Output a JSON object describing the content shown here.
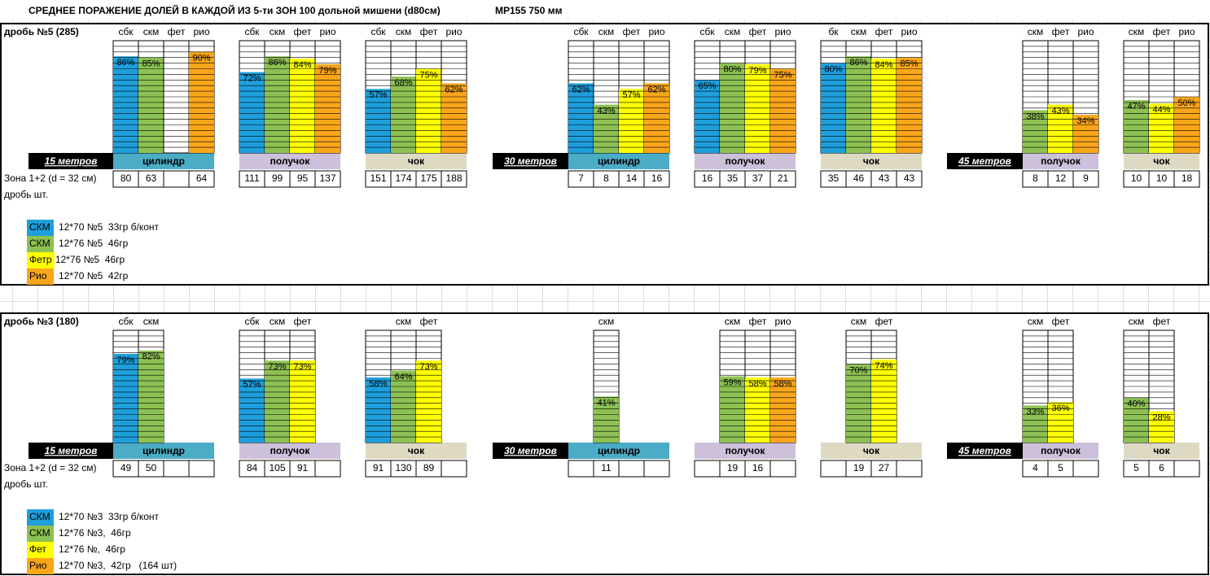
{
  "header": {
    "title": "СРЕДНЕЕ ПОРАЖЕНИЕ ДОЛЕЙ В КАЖДОЙ ИЗ 5-ти ЗОН 100 дольной мишени (d80см)",
    "gun": "МР155 750 мм"
  },
  "sections": [
    {
      "title": "дробь №5 (285)",
      "zone_label": "Зона 1+2 (d = 32 см)",
      "count_label": "дробь шт.",
      "ranges": [
        {
          "distance": "15 метров",
          "groups": [
            {
              "choke": "цилиндр",
              "color": "#4bacc6",
              "columns": [
                {
                  "header": "сбк",
                  "value": 86,
                  "label": "86%",
                  "count": 80,
                  "color": "#1e9fdc"
                },
                {
                  "header": "скм",
                  "value": 85,
                  "label": "85%",
                  "count": 63,
                  "color": "#8dc153"
                },
                {
                  "header": "фет",
                  "value": null,
                  "count": null
                },
                {
                  "header": "рио",
                  "value": 90,
                  "label": "90%",
                  "count": 64,
                  "color": "#faa61a"
                }
              ]
            },
            {
              "choke": "получок",
              "color": "#ccc0da",
              "columns": [
                {
                  "header": "сбк",
                  "value": 72,
                  "label": "72%",
                  "count": 111,
                  "color": "#1e9fdc"
                },
                {
                  "header": "скм",
                  "value": 86,
                  "label": "86%",
                  "count": 99,
                  "color": "#8dc153"
                },
                {
                  "header": "фет",
                  "value": 84,
                  "label": "84%",
                  "count": 95,
                  "color": "#ffff00"
                },
                {
                  "header": "рио",
                  "value": 79,
                  "label": "79%",
                  "count": 137,
                  "color": "#faa61a"
                }
              ]
            },
            {
              "choke": "чок",
              "color": "#ddd9c3",
              "columns": [
                {
                  "header": "сбк",
                  "value": 57,
                  "label": "57%",
                  "count": 151,
                  "color": "#1e9fdc"
                },
                {
                  "header": "скм",
                  "value": 68,
                  "label": "68%",
                  "count": 174,
                  "color": "#8dc153"
                },
                {
                  "header": "фет",
                  "value": 75,
                  "label": "75%",
                  "count": 175,
                  "color": "#ffff00"
                },
                {
                  "header": "рио",
                  "value": 62,
                  "label": "62%",
                  "count": 188,
                  "color": "#faa61a"
                }
              ]
            }
          ]
        },
        {
          "distance": "30 метров",
          "groups": [
            {
              "choke": "цилиндр",
              "color": "#4bacc6",
              "columns": [
                {
                  "header": "сбк",
                  "value": 62,
                  "label": "62%",
                  "count": 7,
                  "color": "#1e9fdc"
                },
                {
                  "header": "скм",
                  "value": 43,
                  "label": "43%",
                  "count": 8,
                  "color": "#8dc153"
                },
                {
                  "header": "фет",
                  "value": 57,
                  "label": "57%",
                  "count": 14,
                  "color": "#ffff00"
                },
                {
                  "header": "рио",
                  "value": 62,
                  "label": "62%",
                  "count": 16,
                  "color": "#faa61a"
                }
              ]
            },
            {
              "choke": "получок",
              "color": "#ccc0da",
              "columns": [
                {
                  "header": "сбк",
                  "value": 65,
                  "label": "65%",
                  "count": 16,
                  "color": "#1e9fdc"
                },
                {
                  "header": "скм",
                  "value": 80,
                  "label": "80%",
                  "count": 35,
                  "color": "#8dc153"
                },
                {
                  "header": "фет",
                  "value": 79,
                  "label": "79%",
                  "count": 37,
                  "color": "#ffff00"
                },
                {
                  "header": "рио",
                  "value": 75,
                  "label": "75%",
                  "count": 21,
                  "color": "#faa61a"
                }
              ]
            },
            {
              "choke": "чок",
              "color": "#ddd9c3",
              "columns": [
                {
                  "header": "бк",
                  "value": 80,
                  "label": "80%",
                  "count": 35,
                  "color": "#1e9fdc"
                },
                {
                  "header": "скм",
                  "value": 86,
                  "label": "86%",
                  "count": 46,
                  "color": "#8dc153"
                },
                {
                  "header": "фет",
                  "value": 84,
                  "label": "84%",
                  "count": 43,
                  "color": "#ffff00"
                },
                {
                  "header": "рио",
                  "value": 85,
                  "label": "85%",
                  "count": 43,
                  "color": "#faa61a"
                }
              ]
            }
          ]
        },
        {
          "distance": "45 метров",
          "groups": [
            {
              "choke": "получок",
              "color": "#ccc0da",
              "columns": [
                {
                  "header": "скм",
                  "value": 38,
                  "label": "38%",
                  "count": 8,
                  "color": "#8dc153"
                },
                {
                  "header": "фет",
                  "value": 43,
                  "label": "43%",
                  "count": 12,
                  "color": "#ffff00"
                },
                {
                  "header": "рио",
                  "value": 34,
                  "label": "34%",
                  "count": 9,
                  "color": "#faa61a"
                }
              ]
            },
            {
              "choke": "чок",
              "color": "#ddd9c3",
              "columns": [
                {
                  "header": "скм",
                  "value": 47,
                  "label": "47%",
                  "count": 10,
                  "color": "#8dc153"
                },
                {
                  "header": "фет",
                  "value": 44,
                  "label": "44%",
                  "count": 10,
                  "color": "#ffff00"
                },
                {
                  "header": "рио",
                  "value": 50,
                  "label": "50%",
                  "count": 18,
                  "color": "#faa61a"
                }
              ]
            }
          ]
        }
      ],
      "legend": [
        {
          "label": "СКМ",
          "color": "#1e9fdc",
          "text": "12*70 №5  33гр б/конт"
        },
        {
          "label": "СКМ",
          "color": "#8dc153",
          "text": "12*76 №5  46гр"
        },
        {
          "label": "Фетр",
          "color": "#ffff00",
          "text": "12*76 №5  46гр"
        },
        {
          "label": "Рио",
          "color": "#faa61a",
          "text": "12*70 №5  42гр"
        }
      ]
    },
    {
      "title": "дробь №3 (180)",
      "zone_label": "Зона 1+2 (d = 32 см)",
      "count_label": "дробь шт.",
      "ranges": [
        {
          "distance": "15 метров",
          "groups": [
            {
              "choke": "цилиндр",
              "color": "#4bacc6",
              "columns": [
                {
                  "header": "сбк",
                  "value": 79,
                  "label": "79%",
                  "count": 49,
                  "color": "#1e9fdc"
                },
                {
                  "header": "скм",
                  "value": 82,
                  "label": "82%",
                  "count": 50,
                  "color": "#8dc153"
                },
                {
                  "header": null,
                  "value": null,
                  "count": null
                },
                {
                  "header": null,
                  "value": null,
                  "count": null
                }
              ]
            },
            {
              "choke": "получок",
              "color": "#ccc0da",
              "columns": [
                {
                  "header": "сбк",
                  "value": 57,
                  "label": "57%",
                  "count": 84,
                  "color": "#1e9fdc"
                },
                {
                  "header": "скм",
                  "value": 73,
                  "label": "73%",
                  "count": 105,
                  "color": "#8dc153"
                },
                {
                  "header": "фет",
                  "value": 73,
                  "label": "73%",
                  "count": 91,
                  "color": "#ffff00"
                },
                {
                  "header": null,
                  "value": null,
                  "count": null
                }
              ]
            },
            {
              "choke": "чок",
              "color": "#ddd9c3",
              "columns": [
                {
                  "header": null,
                  "value": 58,
                  "label": "58%",
                  "count": 91,
                  "color": "#1e9fdc"
                },
                {
                  "header": "скм",
                  "value": 64,
                  "label": "64%",
                  "count": 130,
                  "color": "#8dc153"
                },
                {
                  "header": "фет",
                  "value": 73,
                  "label": "73%",
                  "count": 89,
                  "color": "#ffff00"
                },
                {
                  "header": null,
                  "value": null,
                  "count": null
                }
              ]
            }
          ]
        },
        {
          "distance": "30 метров",
          "groups": [
            {
              "choke": "цилиндр",
              "color": "#4bacc6",
              "columns": [
                {
                  "header": null,
                  "value": null,
                  "count": null
                },
                {
                  "header": "скм",
                  "value": 41,
                  "label": "41%",
                  "count": 11,
                  "color": "#8dc153"
                },
                {
                  "header": null,
                  "value": null,
                  "count": null
                },
                {
                  "header": null,
                  "value": null,
                  "count": null
                }
              ]
            },
            {
              "choke": "получок",
              "color": "#ccc0da",
              "columns": [
                {
                  "header": null,
                  "value": null,
                  "count": null
                },
                {
                  "header": "скм",
                  "value": 59,
                  "label": "59%",
                  "count": 19,
                  "color": "#8dc153"
                },
                {
                  "header": "фет",
                  "value": 58,
                  "label": "58%",
                  "count": 16,
                  "color": "#ffff00"
                },
                {
                  "header": "рио",
                  "value": 58,
                  "label": "58%",
                  "count": null,
                  "color": "#faa61a"
                }
              ]
            },
            {
              "choke": "чок",
              "color": "#ddd9c3",
              "columns": [
                {
                  "header": null,
                  "value": null,
                  "count": null
                },
                {
                  "header": "скм",
                  "value": 70,
                  "label": "70%",
                  "count": 19,
                  "color": "#8dc153"
                },
                {
                  "header": "фет",
                  "value": 74,
                  "label": "74%",
                  "count": 27,
                  "color": "#ffff00"
                },
                {
                  "header": null,
                  "value": null,
                  "count": null
                }
              ]
            }
          ]
        },
        {
          "distance": "45 метров",
          "groups": [
            {
              "choke": "получок",
              "color": "#ccc0da",
              "columns": [
                {
                  "header": "скм",
                  "value": 33,
                  "label": "33%",
                  "count": 4,
                  "color": "#8dc153"
                },
                {
                  "header": "фет",
                  "value": 36,
                  "label": "36%",
                  "count": 5,
                  "color": "#ffff00"
                },
                {
                  "header": null,
                  "value": null,
                  "count": null
                }
              ]
            },
            {
              "choke": "чок",
              "color": "#ddd9c3",
              "columns": [
                {
                  "header": "скм",
                  "value": 40,
                  "label": "40%",
                  "count": 5,
                  "color": "#8dc153"
                },
                {
                  "header": "фет",
                  "value": 28,
                  "label": "28%",
                  "count": 6,
                  "color": "#ffff00"
                },
                {
                  "header": null,
                  "value": null,
                  "count": null
                }
              ]
            }
          ]
        }
      ],
      "legend": [
        {
          "label": "СКМ",
          "color": "#1e9fdc",
          "text": "12*70 №3  33гр б/конт"
        },
        {
          "label": "СКМ",
          "color": "#8dc153",
          "text": "12*76 №3,  46гр"
        },
        {
          "label": "Фет",
          "color": "#ffff00",
          "text": "12*76 №,  46гр"
        },
        {
          "label": "Рио",
          "color": "#faa61a",
          "text": "12*70 №3,  42гр   (164 шт)"
        }
      ]
    }
  ]
}
